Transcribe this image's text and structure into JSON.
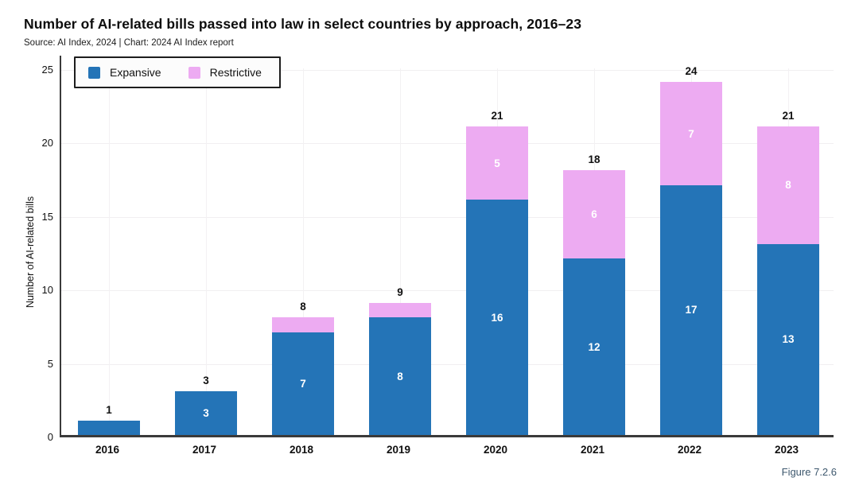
{
  "figure_label": "Figure 7.2.6",
  "colors": {
    "expansive": "#2474b7",
    "restrictive": "#edabf2",
    "axis": "#3a3a3a",
    "grid_h": "#f1eff1",
    "grid_v": "#f3f1f3",
    "segment_label": "#ffffff",
    "total_label": "#111111",
    "figure_label": "#3e586e"
  },
  "chart_data": {
    "type": "bar",
    "stacked": true,
    "title": "Number of AI-related bills passed into law in select countries by approach, 2016–23",
    "source": "Source: AI Index, 2024 | Chart: 2024 AI Index report",
    "xlabel": "",
    "ylabel": "Number of AI-related bills",
    "categories": [
      "2016",
      "2017",
      "2018",
      "2019",
      "2020",
      "2021",
      "2022",
      "2023"
    ],
    "series": [
      {
        "name": "Expansive",
        "color": "#2474b7",
        "values": [
          1,
          3,
          7,
          8,
          16,
          12,
          17,
          13
        ]
      },
      {
        "name": "Restrictive",
        "color": "#edabf2",
        "values": [
          0,
          0,
          1,
          1,
          5,
          6,
          7,
          8
        ]
      }
    ],
    "totals": [
      1,
      3,
      8,
      9,
      21,
      18,
      24,
      21
    ],
    "ylim": [
      0,
      25
    ],
    "yticks": [
      0,
      5,
      10,
      15,
      20,
      25
    ],
    "grid": "faint horizontal at yticks and faint vertical at category centers",
    "legend_position": "top-left-inside"
  }
}
